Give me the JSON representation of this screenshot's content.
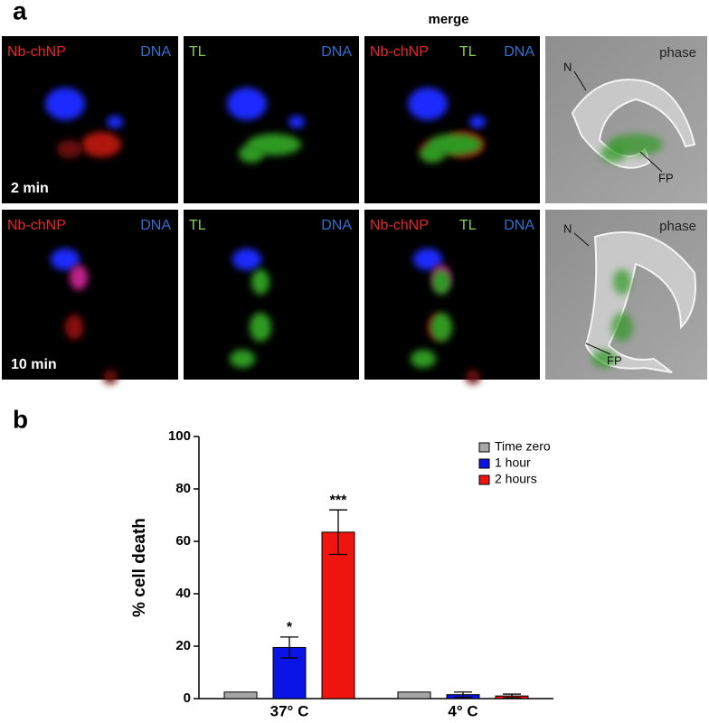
{
  "panel_a": {
    "label": "a",
    "merge": "merge",
    "rows": [
      {
        "time": "2 min",
        "images": [
          [
            "Nb-chNP",
            "DNA"
          ],
          [
            "TL",
            "DNA"
          ],
          [
            "Nb-chNP",
            "TL",
            "DNA"
          ],
          [
            "phase",
            "N",
            "FP"
          ]
        ]
      },
      {
        "time": "10 min",
        "images": [
          [
            "Nb-chNP",
            "DNA"
          ],
          [
            "TL",
            "DNA"
          ],
          [
            "Nb-chNP",
            "TL",
            "DNA"
          ],
          [
            "phase",
            "N",
            "FP"
          ]
        ]
      }
    ]
  },
  "chart_data": {
    "type": "bar",
    "panel_label": "b",
    "ylabel": "% cell death",
    "categories": [
      "37° C",
      "4° C"
    ],
    "series": [
      {
        "name": "Time zero",
        "color": "#a6a6a6",
        "values": [
          2.5,
          2.5
        ]
      },
      {
        "name": "1 hour",
        "color": "#0a14e6",
        "values": [
          19.5,
          1.5
        ],
        "errors": [
          4,
          1
        ],
        "significance": [
          "*",
          null
        ]
      },
      {
        "name": "2 hours",
        "color": "#f0140f",
        "values": [
          63.5,
          1
        ],
        "errors": [
          8.5,
          0.7
        ],
        "significance": [
          "***",
          null
        ]
      }
    ],
    "ylim": [
      0,
      100
    ],
    "yticks": [
      0,
      20,
      40,
      60,
      80,
      100
    ],
    "legend": "top-right"
  }
}
